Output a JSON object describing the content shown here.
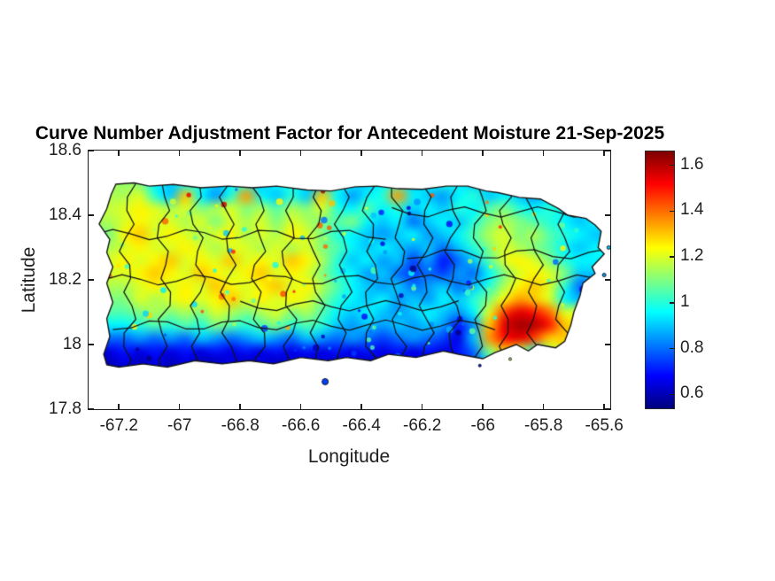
{
  "figure": {
    "background": "#ffffff",
    "axis_color": "#1c1c1c",
    "text_color": "#1f1f1f",
    "title_color": "#000000"
  },
  "chart_data": {
    "type": "heatmap",
    "title": "Curve Number Adjustment Factor for Antecedent Moisture 21-Sep-2025",
    "xlabel": "Longitude",
    "ylabel": "Latitude",
    "region": "Puerto Rico",
    "xlim": [
      -67.3,
      -65.58
    ],
    "ylim": [
      17.8,
      18.6
    ],
    "xticks": [
      -67.2,
      -67,
      -66.8,
      -66.6,
      -66.4,
      -66.2,
      -66,
      -65.8,
      -65.6
    ],
    "xtick_labels": [
      "-67.2",
      "-67",
      "-66.8",
      "-66.6",
      "-66.4",
      "-66.2",
      "-66",
      "-65.8",
      "-65.6"
    ],
    "yticks": [
      18.6,
      18.4,
      18.2,
      18,
      17.8
    ],
    "ytick_labels": [
      "18.6",
      "18.4",
      "18.2",
      "18",
      "17.8"
    ],
    "grid_on": false,
    "box": true,
    "colormap": "jet",
    "clim": [
      0.54,
      1.66
    ],
    "colorbar": {
      "position": "right",
      "ticks": [
        1.6,
        1.4,
        1.2,
        1,
        0.8,
        0.6
      ],
      "labels": [
        "1.6",
        "1.4",
        "1.2",
        "1",
        "0.8",
        "0.6"
      ]
    },
    "grid": {
      "lon_start": -67.28,
      "lon_step": 0.05,
      "lat_start": 18.5,
      "lat_step": -0.04,
      "note": "approximate CN adjustment factor values read from the map raster; null = open sea",
      "values": [
        [
          null,
          null,
          null,
          1.1,
          0.95,
          0.9,
          0.95,
          1.0,
          0.9,
          0.95,
          1.0,
          0.9,
          0.95,
          1.0,
          0.95,
          0.9,
          1.0,
          0.95,
          0.9,
          0.95,
          1.0,
          0.9,
          0.95,
          1.0,
          0.95,
          0.9,
          0.95,
          0.9,
          null,
          null,
          null,
          null,
          null,
          null,
          null
        ],
        [
          null,
          null,
          1.15,
          1.2,
          1.0,
          0.9,
          1.3,
          0.95,
          0.85,
          1.0,
          1.35,
          0.95,
          0.9,
          1.0,
          0.9,
          1.3,
          0.95,
          0.85,
          0.95,
          1.0,
          1.35,
          0.95,
          0.9,
          0.85,
          0.95,
          1.0,
          0.9,
          0.95,
          0.9,
          0.85,
          null,
          null,
          null,
          null,
          null
        ],
        [
          null,
          null,
          1.2,
          1.25,
          1.2,
          1.15,
          1.2,
          1.1,
          1.15,
          1.2,
          1.1,
          1.15,
          1.05,
          1.15,
          1.1,
          1.2,
          1.0,
          0.95,
          1.05,
          0.95,
          1.0,
          0.9,
          0.95,
          0.9,
          1.0,
          0.95,
          1.05,
          1.1,
          1.0,
          0.95,
          1.0,
          0.95,
          0.9,
          null,
          null
        ],
        [
          null,
          1.15,
          1.2,
          1.25,
          1.2,
          1.2,
          1.15,
          1.2,
          1.1,
          1.2,
          1.15,
          1.2,
          1.1,
          1.2,
          1.15,
          1.1,
          1.05,
          1.1,
          0.95,
          0.9,
          0.95,
          0.8,
          0.9,
          0.95,
          0.9,
          1.0,
          1.1,
          1.15,
          1.1,
          1.05,
          1.0,
          0.95,
          0.9,
          0.95,
          null
        ],
        [
          null,
          1.1,
          1.25,
          1.3,
          1.2,
          1.25,
          1.2,
          1.15,
          1.2,
          1.25,
          1.15,
          1.2,
          1.15,
          1.25,
          1.2,
          1.1,
          1.0,
          0.95,
          0.9,
          0.85,
          0.9,
          0.95,
          0.85,
          0.9,
          0.95,
          1.05,
          1.15,
          1.2,
          1.1,
          1.15,
          1.05,
          1.0,
          0.95,
          0.9,
          null
        ],
        [
          null,
          1.15,
          1.2,
          1.25,
          1.2,
          1.2,
          1.25,
          1.2,
          1.15,
          1.2,
          1.2,
          1.15,
          1.2,
          1.15,
          1.2,
          1.1,
          1.05,
          0.95,
          0.9,
          0.95,
          0.9,
          0.85,
          0.9,
          0.8,
          0.9,
          1.0,
          1.1,
          1.2,
          1.15,
          1.1,
          1.05,
          0.95,
          0.9,
          0.95,
          null
        ],
        [
          null,
          1.2,
          1.25,
          1.2,
          1.25,
          1.3,
          1.2,
          1.25,
          1.2,
          1.3,
          1.2,
          1.25,
          1.2,
          1.3,
          1.25,
          1.15,
          1.0,
          0.9,
          0.95,
          0.85,
          0.9,
          0.75,
          0.85,
          0.7,
          0.8,
          0.9,
          1.05,
          1.2,
          1.25,
          1.2,
          1.1,
          1.0,
          0.95,
          null,
          null
        ],
        [
          null,
          null,
          1.2,
          1.25,
          1.3,
          1.25,
          1.2,
          1.3,
          1.25,
          1.2,
          1.25,
          1.3,
          1.2,
          1.25,
          1.2,
          1.1,
          1.0,
          0.95,
          0.85,
          0.9,
          0.8,
          0.75,
          0.8,
          0.75,
          0.85,
          0.8,
          0.95,
          1.1,
          1.2,
          1.25,
          1.2,
          1.1,
          0.9,
          null,
          null
        ],
        [
          null,
          null,
          1.15,
          1.2,
          1.25,
          1.2,
          1.25,
          1.2,
          1.3,
          1.25,
          1.2,
          1.25,
          1.3,
          1.2,
          1.25,
          1.15,
          1.05,
          0.95,
          0.9,
          0.85,
          0.9,
          0.8,
          0.85,
          0.9,
          0.8,
          0.9,
          1.0,
          1.15,
          1.25,
          1.3,
          1.2,
          1.0,
          0.8,
          null,
          null
        ],
        [
          null,
          null,
          1.1,
          1.2,
          1.15,
          1.2,
          1.25,
          1.2,
          1.25,
          1.3,
          1.2,
          1.25,
          1.2,
          1.25,
          1.2,
          1.1,
          1.0,
          0.95,
          0.9,
          0.95,
          0.85,
          0.9,
          0.85,
          0.95,
          0.9,
          1.0,
          1.1,
          1.25,
          1.35,
          1.3,
          1.2,
          0.95,
          null,
          null,
          null
        ],
        [
          null,
          null,
          1.05,
          1.1,
          1.15,
          1.1,
          1.15,
          1.1,
          1.2,
          1.15,
          1.1,
          1.15,
          1.2,
          1.1,
          1.15,
          1.05,
          0.95,
          0.9,
          0.95,
          0.9,
          0.85,
          0.9,
          0.95,
          0.9,
          0.85,
          0.95,
          1.2,
          1.45,
          1.55,
          1.5,
          1.4,
          1.2,
          null,
          null,
          null
        ],
        [
          null,
          null,
          0.95,
          1.0,
          1.05,
          1.0,
          1.05,
          1.0,
          1.1,
          1.05,
          1.0,
          1.05,
          1.1,
          1.0,
          1.05,
          1.0,
          0.9,
          0.85,
          0.9,
          0.85,
          0.9,
          0.85,
          0.9,
          0.85,
          0.7,
          0.85,
          1.3,
          1.55,
          1.62,
          1.6,
          1.5,
          1.3,
          null,
          null,
          null
        ],
        [
          null,
          null,
          0.8,
          0.85,
          0.8,
          0.85,
          0.8,
          0.9,
          0.85,
          0.8,
          0.85,
          0.9,
          0.85,
          0.8,
          0.9,
          0.85,
          0.8,
          0.85,
          0.8,
          0.75,
          0.8,
          0.85,
          0.8,
          0.75,
          0.65,
          0.9,
          1.35,
          1.5,
          1.55,
          1.45,
          1.3,
          null,
          null,
          null,
          null
        ],
        [
          null,
          null,
          0.7,
          0.65,
          0.7,
          0.65,
          0.7,
          0.65,
          0.7,
          0.65,
          0.7,
          0.65,
          0.7,
          0.65,
          0.7,
          0.65,
          0.7,
          0.65,
          0.7,
          0.65,
          0.7,
          0.65,
          0.7,
          0.65,
          0.7,
          0.8,
          1.1,
          1.3,
          1.2,
          1.0,
          null,
          null,
          null,
          null,
          null
        ],
        [
          null,
          0.6,
          0.65,
          0.6,
          0.65,
          0.6,
          0.65,
          0.6,
          0.6,
          0.65,
          0.6,
          0.65,
          0.6,
          0.65,
          0.6,
          0.65,
          0.6,
          0.65,
          0.6,
          0.65,
          0.6,
          0.65,
          0.6,
          0.65,
          0.7,
          0.75,
          null,
          null,
          null,
          null,
          null,
          null,
          null,
          null,
          null
        ],
        [
          null,
          0.6,
          0.6,
          null,
          null,
          null,
          null,
          null,
          null,
          null,
          null,
          null,
          null,
          null,
          null,
          0.65,
          null,
          null,
          null,
          null,
          null,
          null,
          null,
          null,
          null,
          null,
          null,
          null,
          null,
          null,
          null,
          null,
          null,
          null,
          null
        ]
      ]
    },
    "coastline": [
      [
        -67.265,
        18.373
      ],
      [
        -67.24,
        18.42
      ],
      [
        -67.225,
        18.465
      ],
      [
        -67.21,
        18.496
      ],
      [
        -67.15,
        18.5
      ],
      [
        -67.1,
        18.49
      ],
      [
        -67.02,
        18.495
      ],
      [
        -66.93,
        18.485
      ],
      [
        -66.84,
        18.49
      ],
      [
        -66.76,
        18.485
      ],
      [
        -66.68,
        18.49
      ],
      [
        -66.58,
        18.478
      ],
      [
        -66.5,
        18.475
      ],
      [
        -66.42,
        18.488
      ],
      [
        -66.35,
        18.49
      ],
      [
        -66.28,
        18.482
      ],
      [
        -66.2,
        18.48
      ],
      [
        -66.12,
        18.49
      ],
      [
        -66.05,
        18.49
      ],
      [
        -65.99,
        18.475
      ],
      [
        -65.95,
        18.47
      ],
      [
        -65.88,
        18.455
      ],
      [
        -65.81,
        18.45
      ],
      [
        -65.75,
        18.42
      ],
      [
        -65.72,
        18.4
      ],
      [
        -65.66,
        18.39
      ],
      [
        -65.63,
        18.37
      ],
      [
        -65.61,
        18.35
      ],
      [
        -65.62,
        18.3
      ],
      [
        -65.6,
        18.28
      ],
      [
        -65.64,
        18.24
      ],
      [
        -65.63,
        18.22
      ],
      [
        -65.67,
        18.19
      ],
      [
        -65.68,
        18.15
      ],
      [
        -65.7,
        18.1
      ],
      [
        -65.71,
        18.06
      ],
      [
        -65.73,
        18.01
      ],
      [
        -65.76,
        17.99
      ],
      [
        -65.82,
        18.0
      ],
      [
        -65.85,
        17.98
      ],
      [
        -65.89,
        18.0
      ],
      [
        -65.96,
        17.975
      ],
      [
        -66.0,
        17.956
      ],
      [
        -66.08,
        17.97
      ],
      [
        -66.13,
        17.98
      ],
      [
        -66.22,
        17.96
      ],
      [
        -66.31,
        17.97
      ],
      [
        -66.37,
        17.95
      ],
      [
        -66.45,
        17.96
      ],
      [
        -66.51,
        17.95
      ],
      [
        -66.6,
        17.96
      ],
      [
        -66.69,
        17.94
      ],
      [
        -66.77,
        17.95
      ],
      [
        -66.86,
        17.94
      ],
      [
        -66.95,
        17.95
      ],
      [
        -67.04,
        17.93
      ],
      [
        -67.12,
        17.94
      ],
      [
        -67.2,
        17.93
      ],
      [
        -67.24,
        17.937
      ],
      [
        -67.25,
        17.97
      ],
      [
        -67.23,
        18.025
      ],
      [
        -67.24,
        18.08
      ],
      [
        -67.22,
        18.13
      ],
      [
        -67.24,
        18.19
      ],
      [
        -67.22,
        18.24
      ],
      [
        -67.24,
        18.285
      ],
      [
        -67.23,
        18.325
      ]
    ],
    "islets": [
      {
        "lon": -66.52,
        "lat": 17.885,
        "r": 3.5,
        "value": 0.75
      },
      {
        "lon": -65.57,
        "lat": 18.36,
        "r": 2.5,
        "value": 0.95
      },
      {
        "lon": -65.585,
        "lat": 18.3,
        "r": 2.0,
        "value": 0.9
      },
      {
        "lon": -65.6,
        "lat": 18.215,
        "r": 2.0,
        "value": 0.85
      },
      {
        "lon": -66.01,
        "lat": 17.935,
        "r": 1.5,
        "value": 0.7
      },
      {
        "lon": -65.91,
        "lat": 17.955,
        "r": 1.5,
        "value": 1.15
      }
    ],
    "boundaries": {
      "note": "approximate municipal boundary positions",
      "vertical_lons": [
        -67.17,
        -67.05,
        -66.94,
        -66.84,
        -66.74,
        -66.64,
        -66.55,
        -66.46,
        -66.37,
        -66.28,
        -66.19,
        -66.1,
        -66.01,
        -65.92,
        -65.83,
        -65.74
      ],
      "horizontal_lines": [
        {
          "lat": 18.34,
          "lon0": -67.28,
          "lon1": -66.3
        },
        {
          "lat": 18.41,
          "lon0": -66.3,
          "lon1": -65.65
        },
        {
          "lat": 18.28,
          "lon0": -66.25,
          "lon1": -65.6
        },
        {
          "lat": 18.2,
          "lon0": -67.25,
          "lon1": -65.62
        },
        {
          "lat": 18.12,
          "lon0": -66.8,
          "lon1": -66.1
        },
        {
          "lat": 18.06,
          "lon0": -67.22,
          "lon1": -65.95
        }
      ]
    }
  }
}
